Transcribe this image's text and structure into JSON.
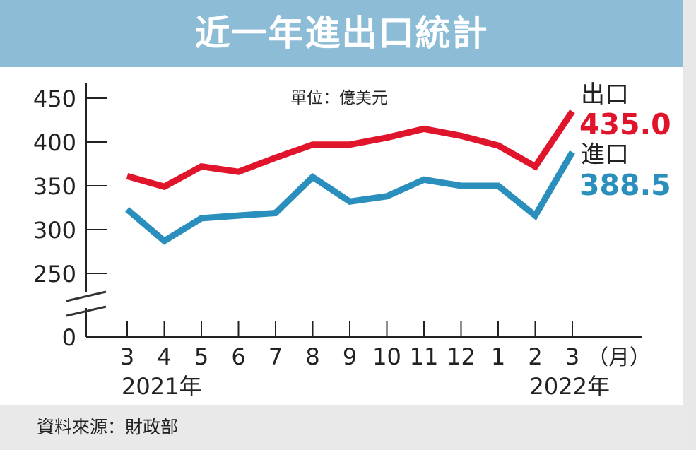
{
  "title": "近一年進出口統計",
  "source": "資料來源：財政部",
  "chart_data": {
    "type": "line",
    "title": "近一年進出口統計",
    "unit_label": "單位：億美元",
    "x": [
      "3",
      "4",
      "5",
      "6",
      "7",
      "8",
      "9",
      "10",
      "11",
      "12",
      "1",
      "2",
      "3"
    ],
    "x_unit": "（月）",
    "year_labels": [
      {
        "text": "2021年",
        "at": 0
      },
      {
        "text": "2022年",
        "at": 11
      }
    ],
    "y_ticks": [
      "450",
      "400",
      "350",
      "300",
      "250",
      "0"
    ],
    "y_tick_values": [
      450,
      400,
      350,
      300,
      250
    ],
    "ylim": [
      250,
      450
    ],
    "axis_break": true,
    "series": [
      {
        "name": "出口",
        "color": "#e0142a",
        "values": [
          361,
          349,
          372,
          366,
          382,
          397,
          397,
          405,
          415,
          407,
          396,
          372,
          435.0
        ],
        "end_label": "435.0"
      },
      {
        "name": "進口",
        "color": "#2a8fbd",
        "values": [
          323,
          287,
          313,
          316,
          319,
          360,
          332,
          338,
          357,
          350,
          350,
          316,
          388.5
        ],
        "end_label": "388.5"
      }
    ]
  }
}
